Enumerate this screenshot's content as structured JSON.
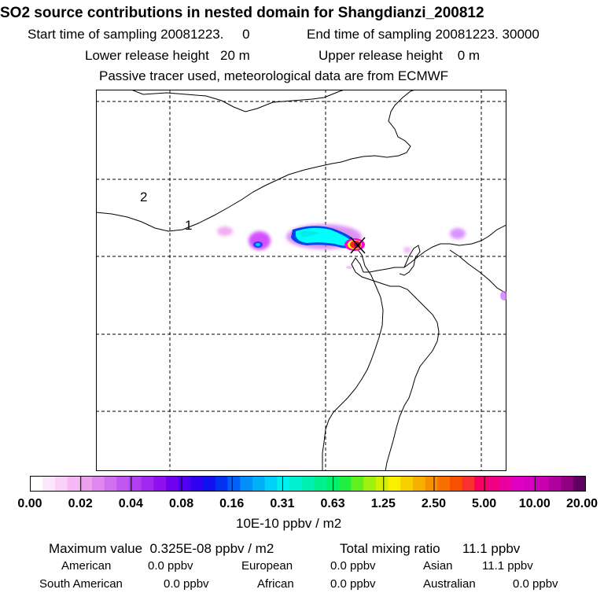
{
  "header": {
    "title": "SO2 source contributions in nested domain for Shangdianzi_200812",
    "start_label": "Start time of sampling 20081223.     0",
    "end_label": "End time of sampling 20081223. 30000",
    "lower_release": "Lower release height   20 m",
    "upper_release": "Upper release height    0 m",
    "tracer_note": "Passive tracer used, meteorological data are from ECMWF"
  },
  "map": {
    "region_labels": [
      "2",
      "1"
    ],
    "station_marker": "x-marker-icon",
    "plume_colors": [
      "#ff66ff",
      "#cc33ff",
      "#9900ff",
      "#0000ff",
      "#0099ff",
      "#00ffff",
      "#ffff00",
      "#ff0000",
      "#cc0066"
    ]
  },
  "colorbar": {
    "colors": [
      "#ffffff",
      "#fce8fc",
      "#f8d0f8",
      "#f4b8f4",
      "#eea0ee",
      "#e088f0",
      "#d070f0",
      "#c058f0",
      "#b040f0",
      "#a028f0",
      "#9010f0",
      "#7000f0",
      "#5000f0",
      "#3000f0",
      "#1010f0",
      "#0030f0",
      "#0060f8",
      "#0090f8",
      "#00b0f8",
      "#00d0f8",
      "#00f0f0",
      "#00f0d0",
      "#00f0b0",
      "#00f090",
      "#00f070",
      "#20f040",
      "#60f020",
      "#a0f010",
      "#d0f000",
      "#f8f000",
      "#f8d000",
      "#f8b000",
      "#f89000",
      "#f87000",
      "#f85000",
      "#f83030",
      "#f80060",
      "#f00080",
      "#e800a0",
      "#e000c0",
      "#d800c0",
      "#c800b0",
      "#b000a0",
      "#900080",
      "#600060"
    ],
    "tick_labels": [
      "0.00",
      "0.02",
      "0.04",
      "0.08",
      "0.16",
      "0.31",
      "0.63",
      "1.25",
      "2.50",
      "5.00",
      "10.00",
      "20.00"
    ],
    "unit": "10E-10 ppbv / m2"
  },
  "summary": {
    "max_value": "Maximum value  0.325E-08 ppbv / m2",
    "total_mixing": "Total mixing ratio      11.1 ppbv",
    "american_label": "American",
    "american_value": "0.0 ppbv",
    "european_label": "European",
    "european_value": "0.0 ppbv",
    "asian_label": "Asian",
    "asian_value": "11.1 ppbv",
    "south_american_label": "South American",
    "south_american_value": "0.0 ppbv",
    "african_label": "African",
    "african_value": "0.0 ppbv",
    "australian_label": "Australian",
    "australian_value": "0.0 ppbv"
  }
}
